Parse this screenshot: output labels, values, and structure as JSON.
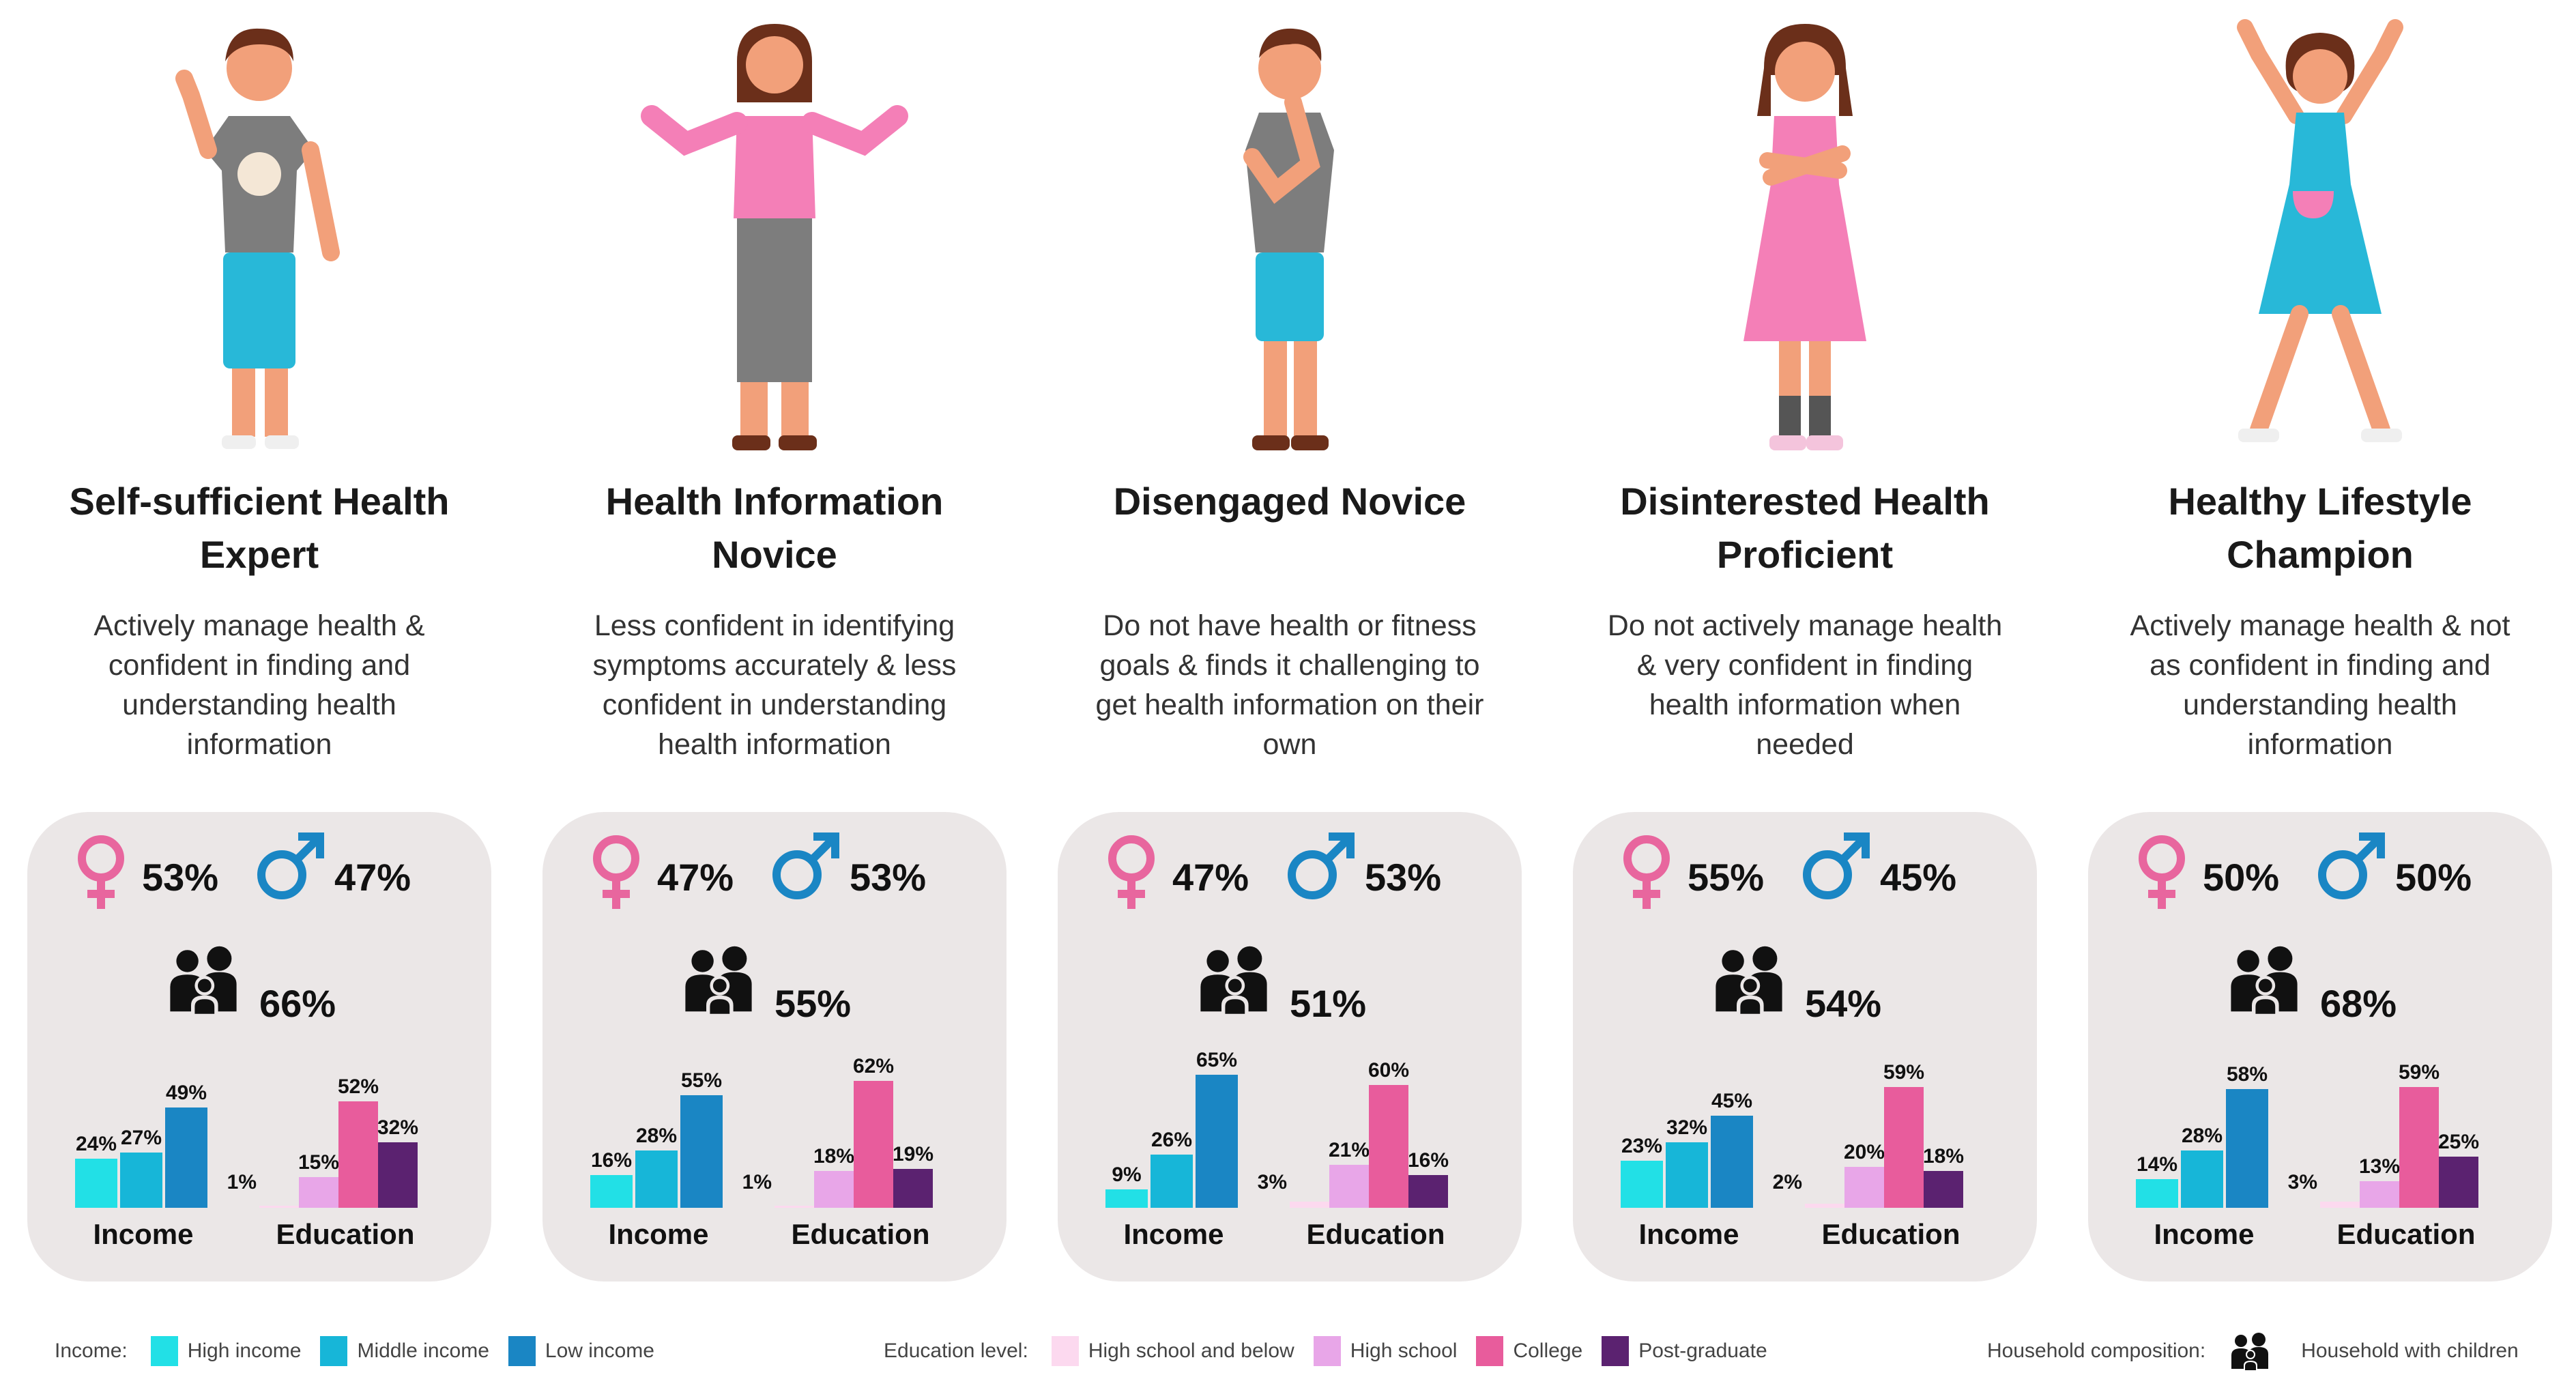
{
  "personas": [
    {
      "title": "Self-sufficient Health Expert",
      "description": "Actively manage health & confident in finding and understanding health information",
      "gender": {
        "female": "53%",
        "male": "47%"
      },
      "household_children": "66%"
    },
    {
      "title": "Health Information Novice",
      "description": "Less confident in identifying symptoms accurately & less confident in understanding health information",
      "gender": {
        "female": "47%",
        "male": "53%"
      },
      "household_children": "55%"
    },
    {
      "title": "Disengaged Novice",
      "description": "Do not have health or fitness goals & finds it challenging to get health information on their own",
      "gender": {
        "female": "47%",
        "male": "53%"
      },
      "household_children": "51%"
    },
    {
      "title": "Disinterested Health Proficient",
      "description": "Do not actively manage health & very confident in finding health information when needed",
      "gender": {
        "female": "55%",
        "male": "45%"
      },
      "household_children": "54%"
    },
    {
      "title": "Healthy Lifestyle Champion",
      "description": "Actively manage health & not as confident in finding and understanding health information",
      "gender": {
        "female": "50%",
        "male": "50%"
      },
      "household_children": "68%"
    }
  ],
  "chart_data": [
    {
      "type": "bar",
      "persona": "Self-sufficient Health Expert",
      "groups": [
        {
          "label": "Income",
          "categories": [
            "High income",
            "Middle income",
            "Low income"
          ],
          "values": [
            24,
            27,
            49
          ]
        },
        {
          "label": "Education",
          "categories": [
            "High school and below",
            "High school",
            "College",
            "Post-graduate"
          ],
          "values": [
            1,
            15,
            52,
            32
          ]
        }
      ]
    },
    {
      "type": "bar",
      "persona": "Health Information Novice",
      "groups": [
        {
          "label": "Income",
          "categories": [
            "High income",
            "Middle income",
            "Low income"
          ],
          "values": [
            16,
            28,
            55
          ]
        },
        {
          "label": "Education",
          "categories": [
            "High school and below",
            "High school",
            "College",
            "Post-graduate"
          ],
          "values": [
            1,
            18,
            62,
            19
          ]
        }
      ]
    },
    {
      "type": "bar",
      "persona": "Disengaged Novice",
      "groups": [
        {
          "label": "Income",
          "categories": [
            "High income",
            "Middle income",
            "Low income"
          ],
          "values": [
            9,
            26,
            65
          ]
        },
        {
          "label": "Education",
          "categories": [
            "High school and below",
            "High school",
            "College",
            "Post-graduate"
          ],
          "values": [
            3,
            21,
            60,
            16
          ]
        }
      ]
    },
    {
      "type": "bar",
      "persona": "Disinterested Health Proficient",
      "groups": [
        {
          "label": "Income",
          "categories": [
            "High income",
            "Middle income",
            "Low income"
          ],
          "values": [
            23,
            32,
            45
          ]
        },
        {
          "label": "Education",
          "categories": [
            "High school and below",
            "High school",
            "College",
            "Post-graduate"
          ],
          "values": [
            2,
            20,
            59,
            18
          ]
        }
      ]
    },
    {
      "type": "bar",
      "persona": "Healthy Lifestyle Champion",
      "groups": [
        {
          "label": "Income",
          "categories": [
            "High income",
            "Middle income",
            "Low income"
          ],
          "values": [
            14,
            28,
            58
          ]
        },
        {
          "label": "Education",
          "categories": [
            "High school and below",
            "High school",
            "College",
            "Post-graduate"
          ],
          "values": [
            3,
            13,
            59,
            25
          ]
        }
      ]
    }
  ],
  "colors": {
    "income": [
      "#22e0e6",
      "#17b6d8",
      "#1a86c4"
    ],
    "education": [
      "#fcd9ef",
      "#e8a6e8",
      "#e85c9c",
      "#5b2270"
    ],
    "female": "#e8669e",
    "male": "#1a86c4",
    "card_bg": "#ebe7e7"
  },
  "legend": {
    "income_title": "Income:",
    "income_items": [
      "High income",
      "Middle income",
      "Low income"
    ],
    "education_title": "Education level:",
    "education_items": [
      "High school and below",
      "High school",
      "College",
      "Post-graduate"
    ],
    "household_title": "Household composition:",
    "household_item": "Household with children"
  }
}
